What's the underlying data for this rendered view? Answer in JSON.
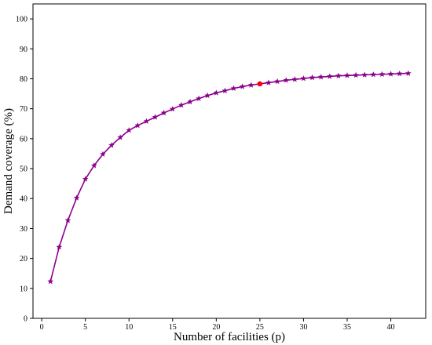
{
  "chart_data": {
    "type": "line",
    "xlabel": "Number of facilities (p)",
    "ylabel": "Demand coverage (%)",
    "xlim": [
      -1,
      44
    ],
    "ylim": [
      0,
      105
    ],
    "xticks": [
      0,
      5,
      10,
      15,
      20,
      25,
      30,
      35,
      40
    ],
    "yticks": [
      0,
      10,
      20,
      30,
      40,
      50,
      60,
      70,
      80,
      90,
      100
    ],
    "grid": false,
    "legend": "none",
    "series": [
      {
        "color": "#8b008b",
        "marker": "star",
        "x": [
          1,
          2,
          3,
          4,
          5,
          6,
          7,
          8,
          9,
          10,
          11,
          12,
          13,
          14,
          15,
          16,
          17,
          18,
          19,
          20,
          21,
          22,
          23,
          24,
          25,
          26,
          27,
          28,
          29,
          30,
          31,
          32,
          33,
          34,
          35,
          36,
          37,
          38,
          39,
          40,
          41,
          42
        ],
        "y": [
          12.3,
          23.8,
          32.7,
          40.2,
          46.5,
          51.0,
          54.8,
          57.8,
          60.4,
          62.8,
          64.4,
          65.8,
          67.2,
          68.6,
          69.9,
          71.2,
          72.3,
          73.4,
          74.4,
          75.3,
          76.0,
          76.8,
          77.4,
          77.9,
          78.3,
          78.7,
          79.1,
          79.5,
          79.8,
          80.1,
          80.4,
          80.6,
          80.8,
          81.0,
          81.1,
          81.2,
          81.3,
          81.4,
          81.5,
          81.6,
          81.7,
          81.8
        ]
      }
    ],
    "highlight": {
      "x": 25,
      "y": 78.3,
      "color": "#ff0000"
    }
  }
}
